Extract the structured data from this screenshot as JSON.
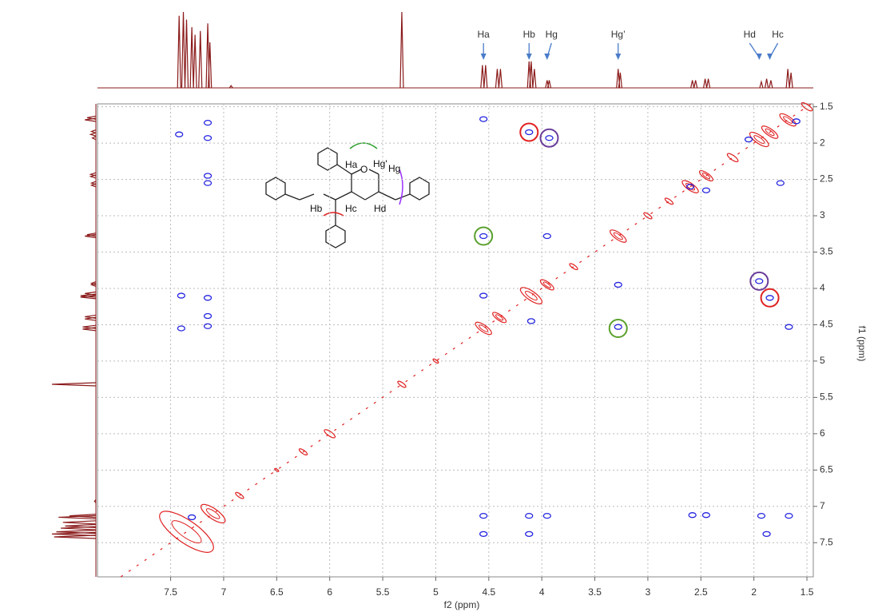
{
  "chart_data": {
    "type": "nmr2d",
    "xlabel": "f2 (ppm)",
    "ylabel": "f1 (ppm)",
    "xlim": [
      8.19,
      1.44
    ],
    "ylim": [
      1.46,
      7.97
    ],
    "xticks": [
      7.5,
      7.0,
      6.5,
      6.0,
      5.5,
      5.0,
      4.5,
      4.0,
      3.5,
      3.0,
      2.5,
      2.0,
      1.5
    ],
    "yticks": [
      1.5,
      2.0,
      2.5,
      3.0,
      3.5,
      4.0,
      4.5,
      5.0,
      5.5,
      6.0,
      6.5,
      7.0,
      7.5
    ],
    "grid": true,
    "projection_color": "#8b1a1a",
    "projection": [
      {
        "ppm": 7.42,
        "intensity": 95
      },
      {
        "ppm": 7.38,
        "intensity": 100
      },
      {
        "ppm": 7.35,
        "intensity": 90
      },
      {
        "ppm": 7.3,
        "intensity": 80
      },
      {
        "ppm": 7.27,
        "intensity": 70
      },
      {
        "ppm": 7.22,
        "intensity": 75
      },
      {
        "ppm": 7.15,
        "intensity": 85
      },
      {
        "ppm": 7.13,
        "intensity": 60
      },
      {
        "ppm": 6.93,
        "intensity": 3
      },
      {
        "ppm": 5.32,
        "intensity": 100
      },
      {
        "ppm": 4.56,
        "intensity": 30
      },
      {
        "ppm": 4.53,
        "intensity": 30
      },
      {
        "ppm": 4.42,
        "intensity": 25
      },
      {
        "ppm": 4.39,
        "intensity": 25
      },
      {
        "ppm": 4.12,
        "intensity": 35
      },
      {
        "ppm": 4.1,
        "intensity": 35
      },
      {
        "ppm": 4.07,
        "intensity": 25
      },
      {
        "ppm": 3.95,
        "intensity": 10
      },
      {
        "ppm": 3.93,
        "intensity": 10
      },
      {
        "ppm": 3.28,
        "intensity": 25
      },
      {
        "ppm": 3.26,
        "intensity": 20
      },
      {
        "ppm": 2.58,
        "intensity": 10
      },
      {
        "ppm": 2.55,
        "intensity": 10
      },
      {
        "ppm": 2.46,
        "intensity": 12
      },
      {
        "ppm": 2.43,
        "intensity": 12
      },
      {
        "ppm": 1.93,
        "intensity": 8
      },
      {
        "ppm": 1.88,
        "intensity": 12
      },
      {
        "ppm": 1.84,
        "intensity": 10
      },
      {
        "ppm": 1.68,
        "intensity": 25
      },
      {
        "ppm": 1.65,
        "intensity": 20
      }
    ],
    "diagonal_color": "#e02020",
    "diagonal": [
      {
        "ppm": 7.35,
        "size": 40
      },
      {
        "ppm": 7.1,
        "size": 18
      },
      {
        "ppm": 6.85,
        "size": 6
      },
      {
        "ppm": 6.5,
        "size": 3
      },
      {
        "ppm": 6.25,
        "size": 6
      },
      {
        "ppm": 6.0,
        "size": 8
      },
      {
        "ppm": 5.32,
        "size": 6
      },
      {
        "ppm": 5.0,
        "size": 4
      },
      {
        "ppm": 4.55,
        "size": 12
      },
      {
        "ppm": 4.4,
        "size": 10
      },
      {
        "ppm": 4.1,
        "size": 16
      },
      {
        "ppm": 3.95,
        "size": 10
      },
      {
        "ppm": 3.7,
        "size": 6
      },
      {
        "ppm": 3.28,
        "size": 12
      },
      {
        "ppm": 3.0,
        "size": 6
      },
      {
        "ppm": 2.8,
        "size": 6
      },
      {
        "ppm": 2.6,
        "size": 12
      },
      {
        "ppm": 2.45,
        "size": 10
      },
      {
        "ppm": 2.2,
        "size": 8
      },
      {
        "ppm": 1.95,
        "size": 14
      },
      {
        "ppm": 1.85,
        "size": 12
      },
      {
        "ppm": 1.68,
        "size": 12
      },
      {
        "ppm": 1.5,
        "size": 8
      }
    ],
    "cross_color": "#2424e0",
    "cross_peaks": [
      [
        7.42,
        1.88
      ],
      [
        7.15,
        1.72
      ],
      [
        7.15,
        1.93
      ],
      [
        7.15,
        2.45
      ],
      [
        7.15,
        2.55
      ],
      [
        4.55,
        1.67
      ],
      [
        7.4,
        4.1
      ],
      [
        7.15,
        4.13
      ],
      [
        7.15,
        4.38
      ],
      [
        7.4,
        4.55
      ],
      [
        7.15,
        4.52
      ],
      [
        4.55,
        3.28
      ],
      [
        3.95,
        3.28
      ],
      [
        4.55,
        4.1
      ],
      [
        4.1,
        4.45
      ],
      [
        3.28,
        3.95
      ],
      [
        3.28,
        4.53
      ],
      [
        1.67,
        4.53
      ],
      [
        1.75,
        2.55
      ],
      [
        4.55,
        7.13
      ],
      [
        4.12,
        7.13
      ],
      [
        4.12,
        7.38
      ],
      [
        4.55,
        7.38
      ],
      [
        3.95,
        7.13
      ],
      [
        2.58,
        7.12
      ],
      [
        2.45,
        7.12
      ],
      [
        1.93,
        7.13
      ],
      [
        1.88,
        7.38
      ],
      [
        1.67,
        7.13
      ],
      [
        4.12,
        1.85
      ],
      [
        3.93,
        1.93
      ],
      [
        1.95,
        3.9
      ],
      [
        1.85,
        4.13
      ],
      [
        2.05,
        1.95
      ],
      [
        2.6,
        2.6
      ],
      [
        2.45,
        2.65
      ],
      [
        1.6,
        1.7
      ],
      [
        7.3,
        7.15
      ]
    ],
    "circled": [
      {
        "f2": 4.12,
        "f1": 1.85,
        "color": "#e02020"
      },
      {
        "f2": 3.93,
        "f1": 1.93,
        "color": "#6a3d9a"
      },
      {
        "f2": 4.55,
        "f1": 3.28,
        "color": "#5aa02c"
      },
      {
        "f2": 3.28,
        "f1": 4.55,
        "color": "#5aa02c"
      },
      {
        "f2": 1.95,
        "f1": 3.9,
        "color": "#6a3d9a"
      },
      {
        "f2": 1.85,
        "f1": 4.13,
        "color": "#e02020"
      }
    ],
    "annotations": [
      {
        "text": "Ha",
        "ppm": 4.55
      },
      {
        "text": "Hb",
        "ppm": 4.12
      },
      {
        "text": "Hg",
        "ppm": 3.95
      },
      {
        "text": "Hg’",
        "ppm": 3.28
      },
      {
        "text": "Hd",
        "ppm": 1.95
      },
      {
        "text": "Hc",
        "ppm": 1.85
      }
    ],
    "structure_labels": [
      "Ha",
      "O",
      "Hg'",
      "Hg",
      "Hb",
      "Hc",
      "Hd"
    ]
  }
}
